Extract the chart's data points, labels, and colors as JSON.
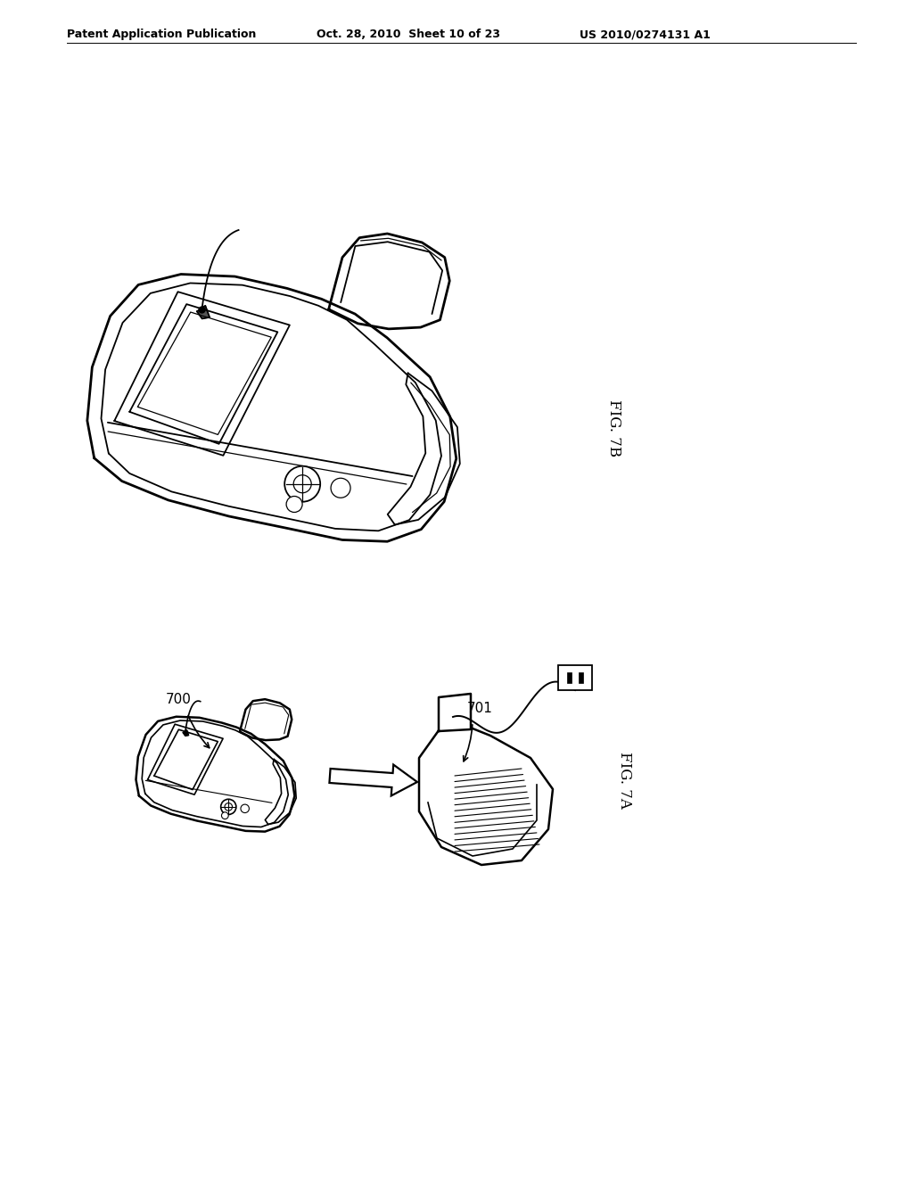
{
  "background_color": "#ffffff",
  "header_left": "Patent Application Publication",
  "header_mid": "Oct. 28, 2010  Sheet 10 of 23",
  "header_right": "US 2010/0274131 A1",
  "fig_7b_label": "FIG. 7B",
  "fig_7a_label": "FIG. 7A",
  "label_700": "700",
  "label_701": "701",
  "line_color": "#000000",
  "line_width": 1.5
}
